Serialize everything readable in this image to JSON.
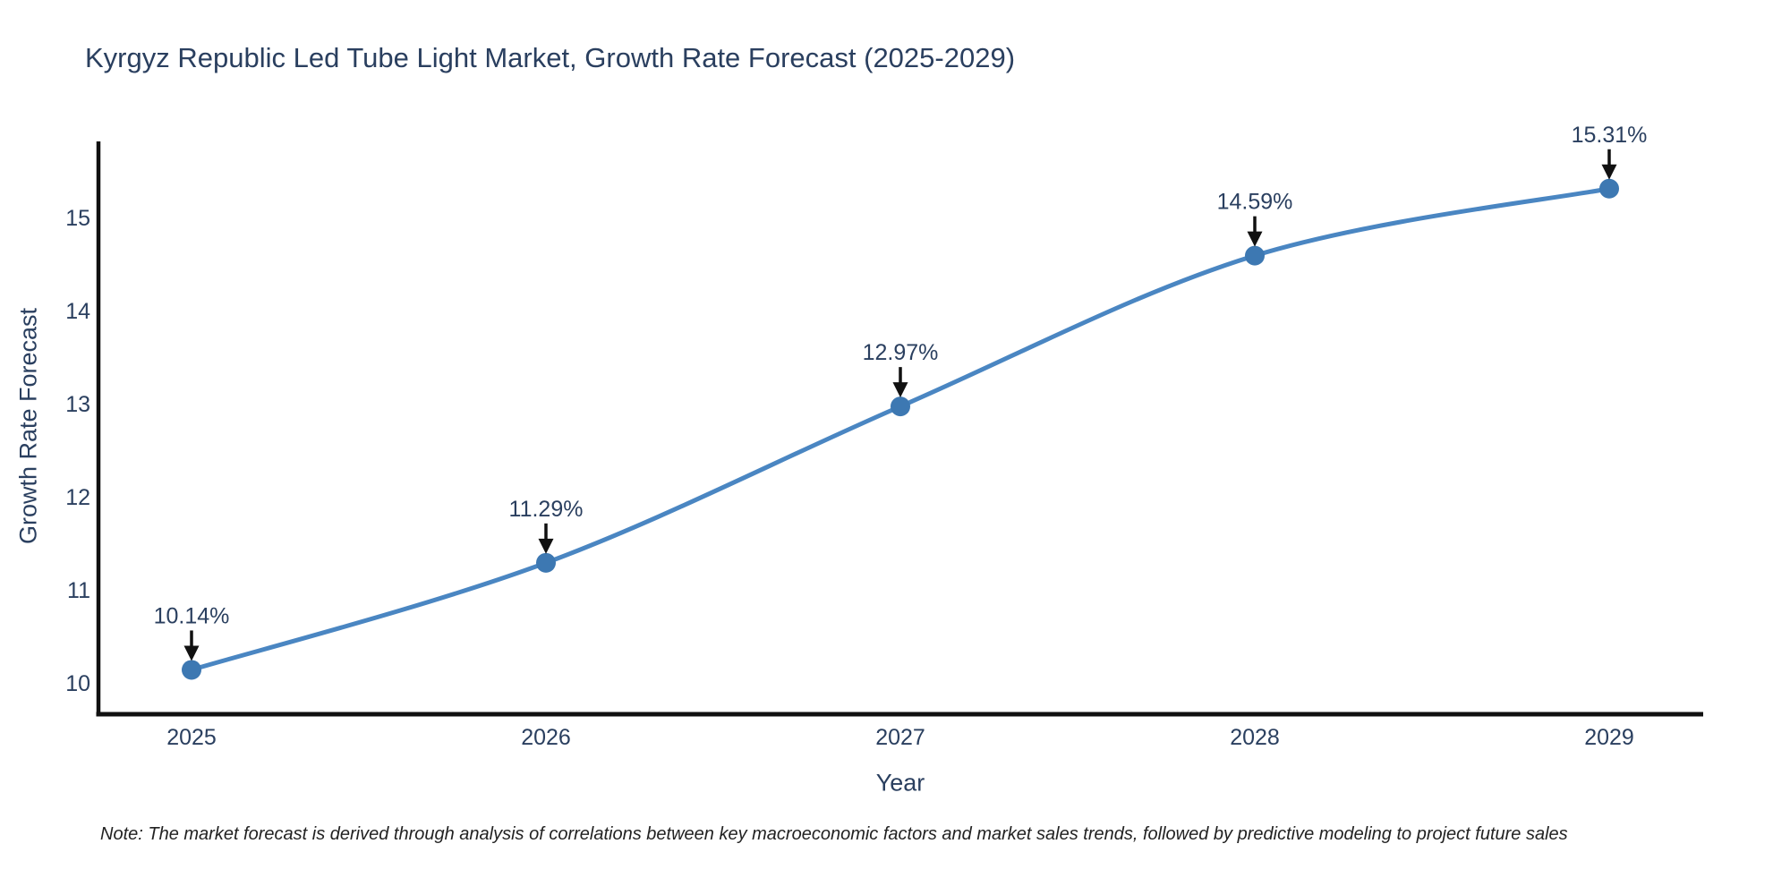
{
  "title": "Kyrgyz Republic Led Tube Light Market, Growth Rate Forecast (2025-2029)",
  "note": "Note: The market forecast is derived through analysis of correlations between key macroeconomic factors and market sales trends, followed by predictive modeling to project future sales",
  "chart_data": {
    "type": "line",
    "title": "Kyrgyz Republic Led Tube Light Market, Growth Rate Forecast (2025-2029)",
    "x": [
      "2025",
      "2026",
      "2027",
      "2028",
      "2029"
    ],
    "series": [
      {
        "name": "Growth Rate Forecast",
        "values": [
          10.14,
          11.29,
          12.97,
          14.59,
          15.31
        ]
      }
    ],
    "point_labels": [
      "10.14%",
      "11.29%",
      "12.97%",
      "14.59%",
      "15.31%"
    ],
    "xlabel": "Year",
    "ylabel": "Growth Rate Forecast",
    "yticks": [
      10,
      11,
      12,
      13,
      14,
      15
    ],
    "ylim": [
      9.66,
      15.8
    ],
    "line_shape": "spline",
    "grid": false,
    "legend": "none",
    "markers": true,
    "annotations_have_arrows": true,
    "colors": {
      "line": "#4a86c2",
      "marker": "#3d78b2",
      "axis": "#111111",
      "text": "#2a3f5f",
      "annotation_text": "#2a3f5f",
      "annotation_arrow": "#111111",
      "note_text": "#222222",
      "background": "#ffffff"
    }
  }
}
